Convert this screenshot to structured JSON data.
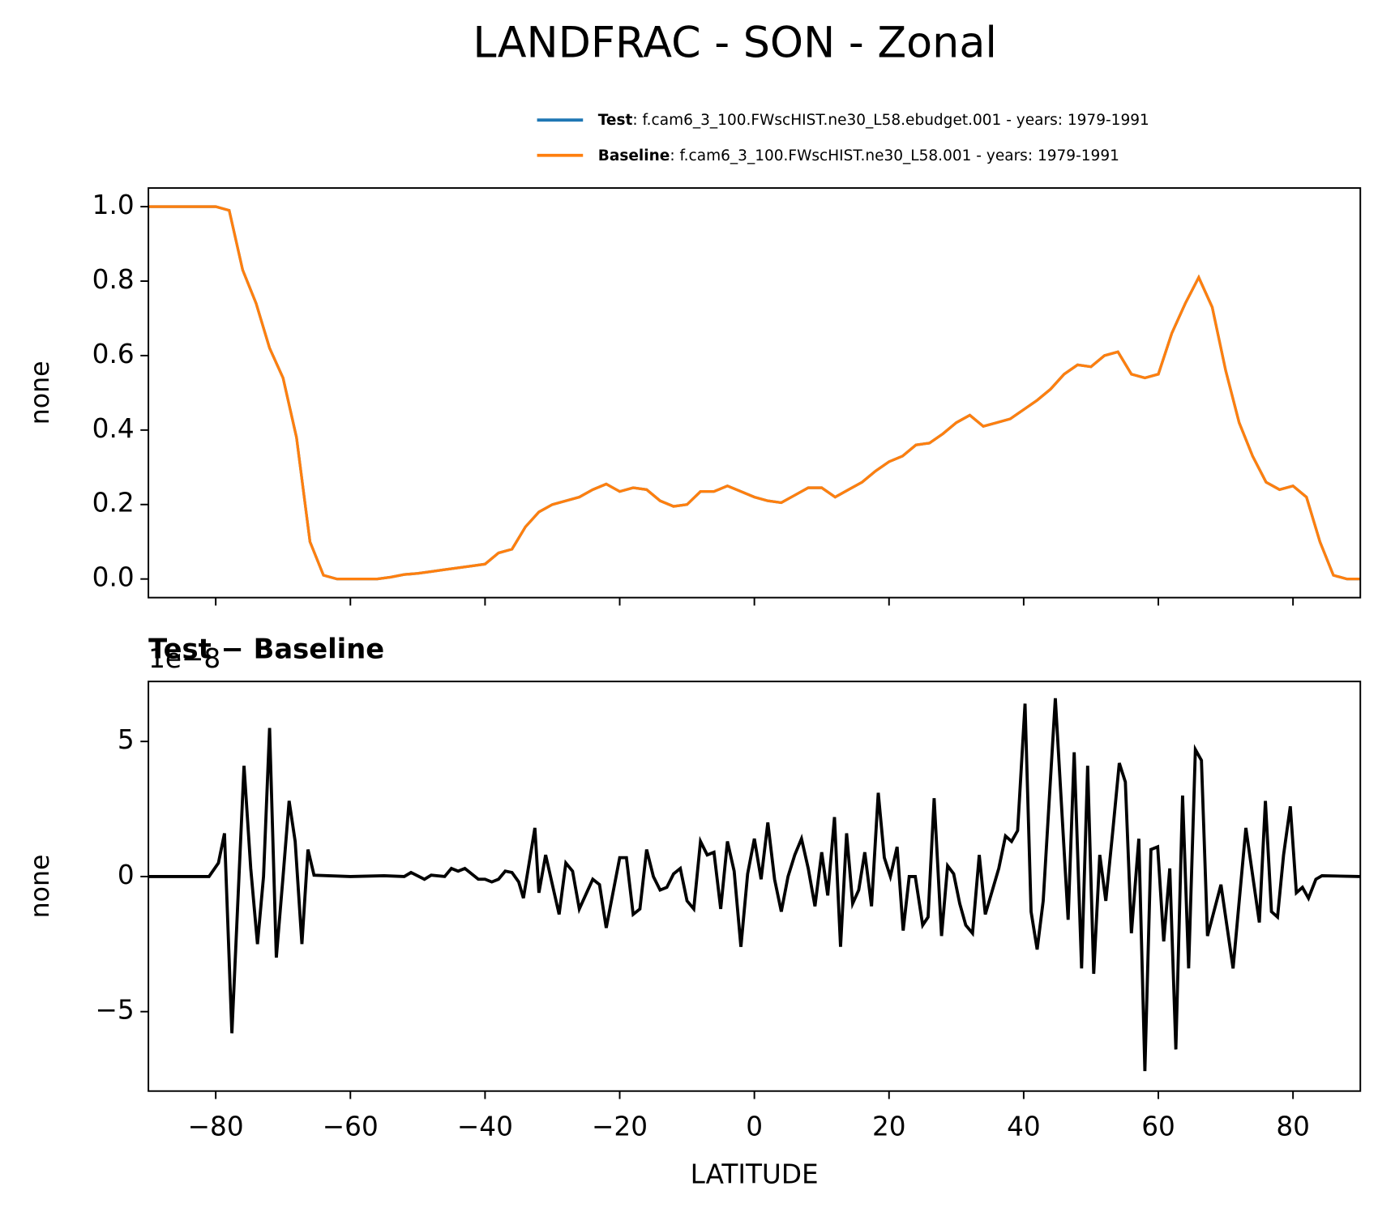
{
  "title": "LANDFRAC - SON - Zonal",
  "chart_data": [
    {
      "type": "line",
      "ylabel": "none",
      "x": [
        -90,
        -88,
        -86,
        -84,
        -82,
        -80,
        -78,
        -76,
        -74,
        -72,
        -70,
        -68,
        -66,
        -64,
        -62,
        -60,
        -58,
        -56,
        -54,
        -52,
        -50,
        -48,
        -46,
        -44,
        -42,
        -40,
        -38,
        -36,
        -34,
        -32,
        -30,
        -28,
        -26,
        -24,
        -22,
        -20,
        -18,
        -16,
        -14,
        -12,
        -10,
        -8,
        -6,
        -4,
        -2,
        0,
        2,
        4,
        6,
        8,
        10,
        12,
        14,
        16,
        18,
        20,
        22,
        24,
        26,
        28,
        30,
        32,
        34,
        36,
        38,
        40,
        42,
        44,
        46,
        48,
        50,
        52,
        54,
        56,
        58,
        60,
        62,
        64,
        66,
        68,
        70,
        72,
        74,
        76,
        78,
        80,
        82,
        84,
        86,
        88,
        90
      ],
      "series": [
        {
          "name": "Test",
          "label": ": f.cam6_3_100.FWscHIST.ne30_L58.ebudget.001 - years: 1979-1991",
          "color": "#1f77b4",
          "values": [
            1.0,
            1.0,
            1.0,
            1.0,
            1.0,
            1.0,
            0.99,
            0.83,
            0.74,
            0.62,
            0.54,
            0.38,
            0.1,
            0.01,
            0.0,
            0.0,
            0.0,
            0.0,
            0.005,
            0.012,
            0.015,
            0.02,
            0.025,
            0.03,
            0.035,
            0.04,
            0.07,
            0.08,
            0.14,
            0.18,
            0.2,
            0.21,
            0.22,
            0.24,
            0.255,
            0.235,
            0.245,
            0.24,
            0.21,
            0.195,
            0.2,
            0.235,
            0.235,
            0.25,
            0.235,
            0.22,
            0.21,
            0.205,
            0.225,
            0.245,
            0.245,
            0.22,
            0.24,
            0.26,
            0.29,
            0.315,
            0.33,
            0.36,
            0.365,
            0.39,
            0.42,
            0.44,
            0.41,
            0.42,
            0.43,
            0.455,
            0.48,
            0.51,
            0.55,
            0.575,
            0.57,
            0.6,
            0.61,
            0.55,
            0.54,
            0.55,
            0.66,
            0.74,
            0.81,
            0.73,
            0.56,
            0.42,
            0.33,
            0.26,
            0.24,
            0.25,
            0.22,
            0.1,
            0.01,
            0.0,
            0.0
          ]
        },
        {
          "name": "Baseline",
          "label": ": f.cam6_3_100.FWscHIST.ne30_L58.001 - years: 1979-1991",
          "color": "#ff7f0e",
          "values": [
            1.0,
            1.0,
            1.0,
            1.0,
            1.0,
            1.0,
            0.99,
            0.83,
            0.74,
            0.62,
            0.54,
            0.38,
            0.1,
            0.01,
            0.0,
            0.0,
            0.0,
            0.0,
            0.005,
            0.012,
            0.015,
            0.02,
            0.025,
            0.03,
            0.035,
            0.04,
            0.07,
            0.08,
            0.14,
            0.18,
            0.2,
            0.21,
            0.22,
            0.24,
            0.255,
            0.235,
            0.245,
            0.24,
            0.21,
            0.195,
            0.2,
            0.235,
            0.235,
            0.25,
            0.235,
            0.22,
            0.21,
            0.205,
            0.225,
            0.245,
            0.245,
            0.22,
            0.24,
            0.26,
            0.29,
            0.315,
            0.33,
            0.36,
            0.365,
            0.39,
            0.42,
            0.44,
            0.41,
            0.42,
            0.43,
            0.455,
            0.48,
            0.51,
            0.55,
            0.575,
            0.57,
            0.6,
            0.61,
            0.55,
            0.54,
            0.55,
            0.66,
            0.74,
            0.81,
            0.73,
            0.56,
            0.42,
            0.33,
            0.26,
            0.24,
            0.25,
            0.22,
            0.1,
            0.01,
            0.0,
            0.0
          ]
        }
      ],
      "xlim": [
        -90,
        90
      ],
      "ylim": [
        -0.05,
        1.05
      ],
      "yticks": [
        {
          "value": 0,
          "label": "0.0"
        },
        0.2,
        0.4,
        0.6,
        0.8,
        {
          "value": 1,
          "label": "1.0"
        }
      ],
      "legend": "upper right"
    },
    {
      "type": "line",
      "title": "Test − Baseline",
      "offset_label": "1e−8",
      "ylabel": "none",
      "xlabel": "LATITUDE",
      "color": "#000000",
      "x": [
        -90,
        -81,
        -79.6,
        -78.7,
        -77.6,
        -75.8,
        -74.8,
        -73.8,
        -72.9,
        -72,
        -71,
        -70,
        -69.1,
        -68.2,
        -67.2,
        -66.3,
        -65.4,
        -60,
        -55,
        -52,
        -51,
        -49,
        -48,
        -46,
        -45,
        -44,
        -43,
        -41,
        -40,
        -39,
        -38,
        -37,
        -36,
        -35,
        -34.3,
        -32.6,
        -32,
        -31,
        -29,
        -28,
        -27,
        -26,
        -24,
        -23,
        -22,
        -20,
        -19,
        -18,
        -17,
        -16,
        -15,
        -14,
        -13,
        -12,
        -11,
        -10,
        -9,
        -8,
        -7,
        -6,
        -5,
        -4,
        -3,
        -2,
        -1,
        0,
        1,
        2,
        3,
        4,
        5,
        6,
        7,
        8,
        9,
        10,
        10.9,
        11.9,
        12.8,
        13.7,
        14.6,
        15.5,
        16.4,
        17.4,
        18.4,
        19.3,
        20.2,
        21.2,
        22.1,
        23,
        23.9,
        25,
        25.8,
        26.7,
        27.8,
        28.7,
        29.6,
        30.5,
        31.4,
        32.4,
        33.4,
        34.3,
        36.3,
        37.3,
        38.2,
        39.1,
        40.2,
        41.1,
        42,
        42.9,
        44.7,
        46.6,
        47.5,
        48.6,
        49.5,
        50.4,
        51.3,
        52.2,
        53.2,
        54.2,
        55.1,
        56,
        57.1,
        58,
        58.9,
        59.9,
        60.8,
        61.7,
        62.6,
        63.6,
        64.5,
        65.5,
        66.4,
        67.3,
        69.3,
        71.1,
        73,
        75,
        75.9,
        76.8,
        77.7,
        78.6,
        79.6,
        80.5,
        81.4,
        82.3,
        83.4,
        84.3,
        90
      ],
      "values": [
        0,
        0,
        0.5,
        1.6,
        -5.8,
        4.1,
        0.3,
        -2.5,
        0,
        5.5,
        -3.0,
        0,
        2.8,
        1.3,
        -2.5,
        1.0,
        0.05,
        0,
        0.03,
        0,
        0.15,
        -0.1,
        0.05,
        0,
        0.3,
        0.2,
        0.3,
        -0.1,
        -0.1,
        -0.2,
        -0.1,
        0.2,
        0.15,
        -0.2,
        -0.8,
        1.8,
        -0.6,
        0.8,
        -1.4,
        0.5,
        0.2,
        -1.2,
        -0.1,
        -0.3,
        -1.9,
        0.7,
        0.7,
        -1.4,
        -1.2,
        1.0,
        0.0,
        -0.5,
        -0.4,
        0.1,
        0.3,
        -0.9,
        -1.2,
        1.3,
        0.8,
        0.9,
        -1.2,
        1.3,
        0.2,
        -2.6,
        0.1,
        1.4,
        -0.1,
        2.0,
        -0.1,
        -1.3,
        0,
        0.8,
        1.4,
        0.3,
        -1.1,
        0.9,
        -0.7,
        2.2,
        -2.6,
        1.6,
        -1.0,
        -0.5,
        0.9,
        -1.1,
        3.1,
        0.7,
        0,
        1.1,
        -2.0,
        0,
        0,
        -1.8,
        -1.5,
        2.9,
        -2.2,
        0.4,
        0.1,
        -1.0,
        -1.8,
        -2.1,
        0.8,
        -1.4,
        0.3,
        1.5,
        1.3,
        1.7,
        6.4,
        -1.3,
        -2.7,
        -0.9,
        6.6,
        -1.6,
        4.6,
        -3.4,
        4.1,
        -3.6,
        0.8,
        -0.9,
        1.6,
        4.2,
        3.5,
        -2.1,
        1.4,
        -7.2,
        1.0,
        1.1,
        -2.4,
        0.3,
        -6.4,
        3.0,
        -3.4,
        4.7,
        4.3,
        -2.2,
        -0.3,
        -3.4,
        1.8,
        -1.7,
        2.8,
        -1.3,
        -1.5,
        0.8,
        2.6,
        -0.6,
        -0.4,
        -0.8,
        -0.1,
        0.03,
        0
      ],
      "xlim": [
        -90,
        90
      ],
      "xticks": [
        {
          "value": -80,
          "label": "−80"
        },
        {
          "value": -60,
          "label": "−60"
        },
        {
          "value": -40,
          "label": "−40"
        },
        {
          "value": -20,
          "label": "−20"
        },
        0,
        20,
        40,
        60,
        80
      ],
      "ylim": [
        -7.94,
        7.22
      ],
      "yticks": [
        {
          "value": -5,
          "label": "−5"
        },
        0,
        5
      ]
    }
  ]
}
